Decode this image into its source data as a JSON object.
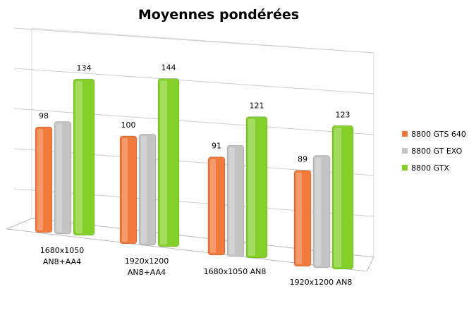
{
  "chart_data": {
    "type": "bar",
    "title": "Moyennes pondérées",
    "categories": [
      "1680x1050 AN8+AA4",
      "1920x1200 AN8+AA4",
      "1680x1050 AN8",
      "1920x1200 AN8"
    ],
    "series": [
      {
        "name": "8800 GTS 640",
        "color": "#f07a3c",
        "values": [
          98,
          100,
          91,
          89
        ]
      },
      {
        "name": "8800 GT EXO",
        "color": "#c4c4c4",
        "values": [
          100,
          99,
          99,
          100
        ]
      },
      {
        "name": "8800 GTX",
        "color": "#84d02a",
        "values": [
          134,
          144,
          121,
          123
        ]
      }
    ],
    "ylim": [
      0,
      160
    ],
    "legend": "right"
  }
}
